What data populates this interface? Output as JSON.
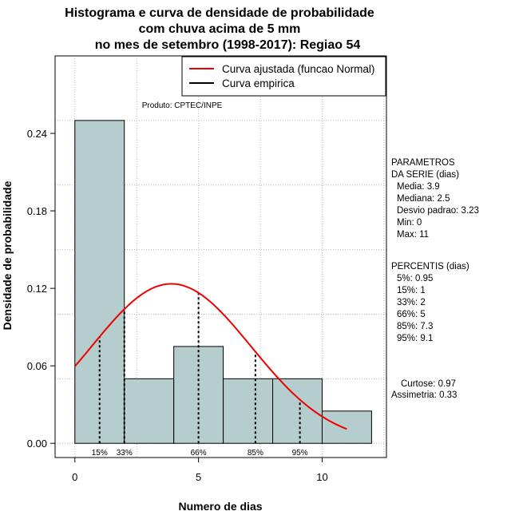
{
  "chart_data": {
    "type": "bar",
    "title_lines": [
      "Histograma e curva de densidade de probabilidade",
      "com chuva acima de 5 mm",
      "no mes de setembro (1998-2017): Regiao 54"
    ],
    "xlabel": "Numero de dias",
    "ylabel": "Densidade de probabilidade",
    "xlim": [
      -0.8,
      12.6
    ],
    "ylim": [
      -0.011,
      0.3
    ],
    "x_ticks": [
      0,
      5,
      10
    ],
    "y_ticks": [
      0.0,
      0.06,
      0.12,
      0.18,
      0.24
    ],
    "y_tick_labels": [
      "0.00",
      "0.06",
      "0.12",
      "0.18",
      "0.24"
    ],
    "grid": true,
    "bins": [
      {
        "x0": 0,
        "x1": 2,
        "density": 0.25
      },
      {
        "x0": 2,
        "x1": 4,
        "density": 0.05
      },
      {
        "x0": 4,
        "x1": 6,
        "density": 0.075
      },
      {
        "x0": 6,
        "x1": 8,
        "density": 0.05
      },
      {
        "x0": 8,
        "x1": 10,
        "density": 0.05
      },
      {
        "x0": 10,
        "x1": 12,
        "density": 0.025
      }
    ],
    "bar_color": "#b5cdcc",
    "fitted_curve": {
      "name": "Curva ajustada (funcao Normal)",
      "color": "#ee0000",
      "mean": 3.9,
      "sd": 3.23,
      "x_range": [
        0,
        11
      ]
    },
    "empirical_curve": {
      "name": "Curva empirica",
      "color": "#000000"
    },
    "legend_position": "top-right",
    "percentile_lines": [
      {
        "x": 1,
        "label": "15%"
      },
      {
        "x": 2,
        "label": "33%"
      },
      {
        "x": 5,
        "label": "66%"
      },
      {
        "x": 7.3,
        "label": "85%"
      },
      {
        "x": 9.1,
        "label": "95%"
      }
    ],
    "annotation": "Produto: CPTEC/INPE"
  },
  "side_panel": {
    "parametros": [
      "PARAMETROS",
      "DA SERIE (dias)",
      "Media: 3.9",
      "Mediana: 2.5",
      "Desvio padrao: 3.23",
      "Min: 0",
      "Max: 11"
    ],
    "percentis": [
      "PERCENTIS (dias)",
      "5%: 0.95",
      "15%: 1",
      "33%: 2",
      "66%: 5",
      "85%: 7.3",
      "95%: 9.1"
    ],
    "curtose": "Curtose: 0.97",
    "assimetria": "Assimetria: 0.33"
  }
}
